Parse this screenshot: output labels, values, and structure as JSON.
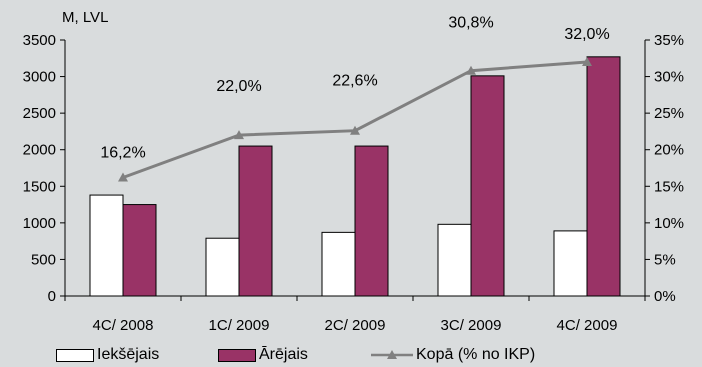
{
  "chart_data": {
    "type": "bar",
    "y_unit_label": "M, LVL",
    "categories": [
      "4C/ 2008",
      "1C/ 2009",
      "2C/ 2009",
      "3C/ 2009",
      "4C/ 2009"
    ],
    "series": [
      {
        "name": "Iekšējais",
        "type": "bar",
        "axis": "left",
        "color": "#ffffff",
        "values": [
          1380,
          790,
          870,
          980,
          890
        ]
      },
      {
        "name": "Ārējais",
        "type": "bar",
        "axis": "left",
        "color": "#993366",
        "values": [
          1250,
          2050,
          2050,
          3010,
          3270
        ]
      },
      {
        "name": "Kopā (% no IKP)",
        "type": "line",
        "axis": "right",
        "color": "#808080",
        "values": [
          16.2,
          22.0,
          22.6,
          30.8,
          32.0
        ],
        "labels": [
          "16,2%",
          "22,0%",
          "22,6%",
          "30,8%",
          "32,0%"
        ]
      }
    ],
    "ylim": [
      0,
      3500
    ],
    "yticks": [
      0,
      500,
      1000,
      1500,
      2000,
      2500,
      3000,
      3500
    ],
    "y2lim": [
      0,
      35
    ],
    "y2ticks": [
      "0%",
      "5%",
      "10%",
      "15%",
      "20%",
      "25%",
      "30%",
      "35%"
    ],
    "legend_position": "bottom",
    "grid": false
  }
}
